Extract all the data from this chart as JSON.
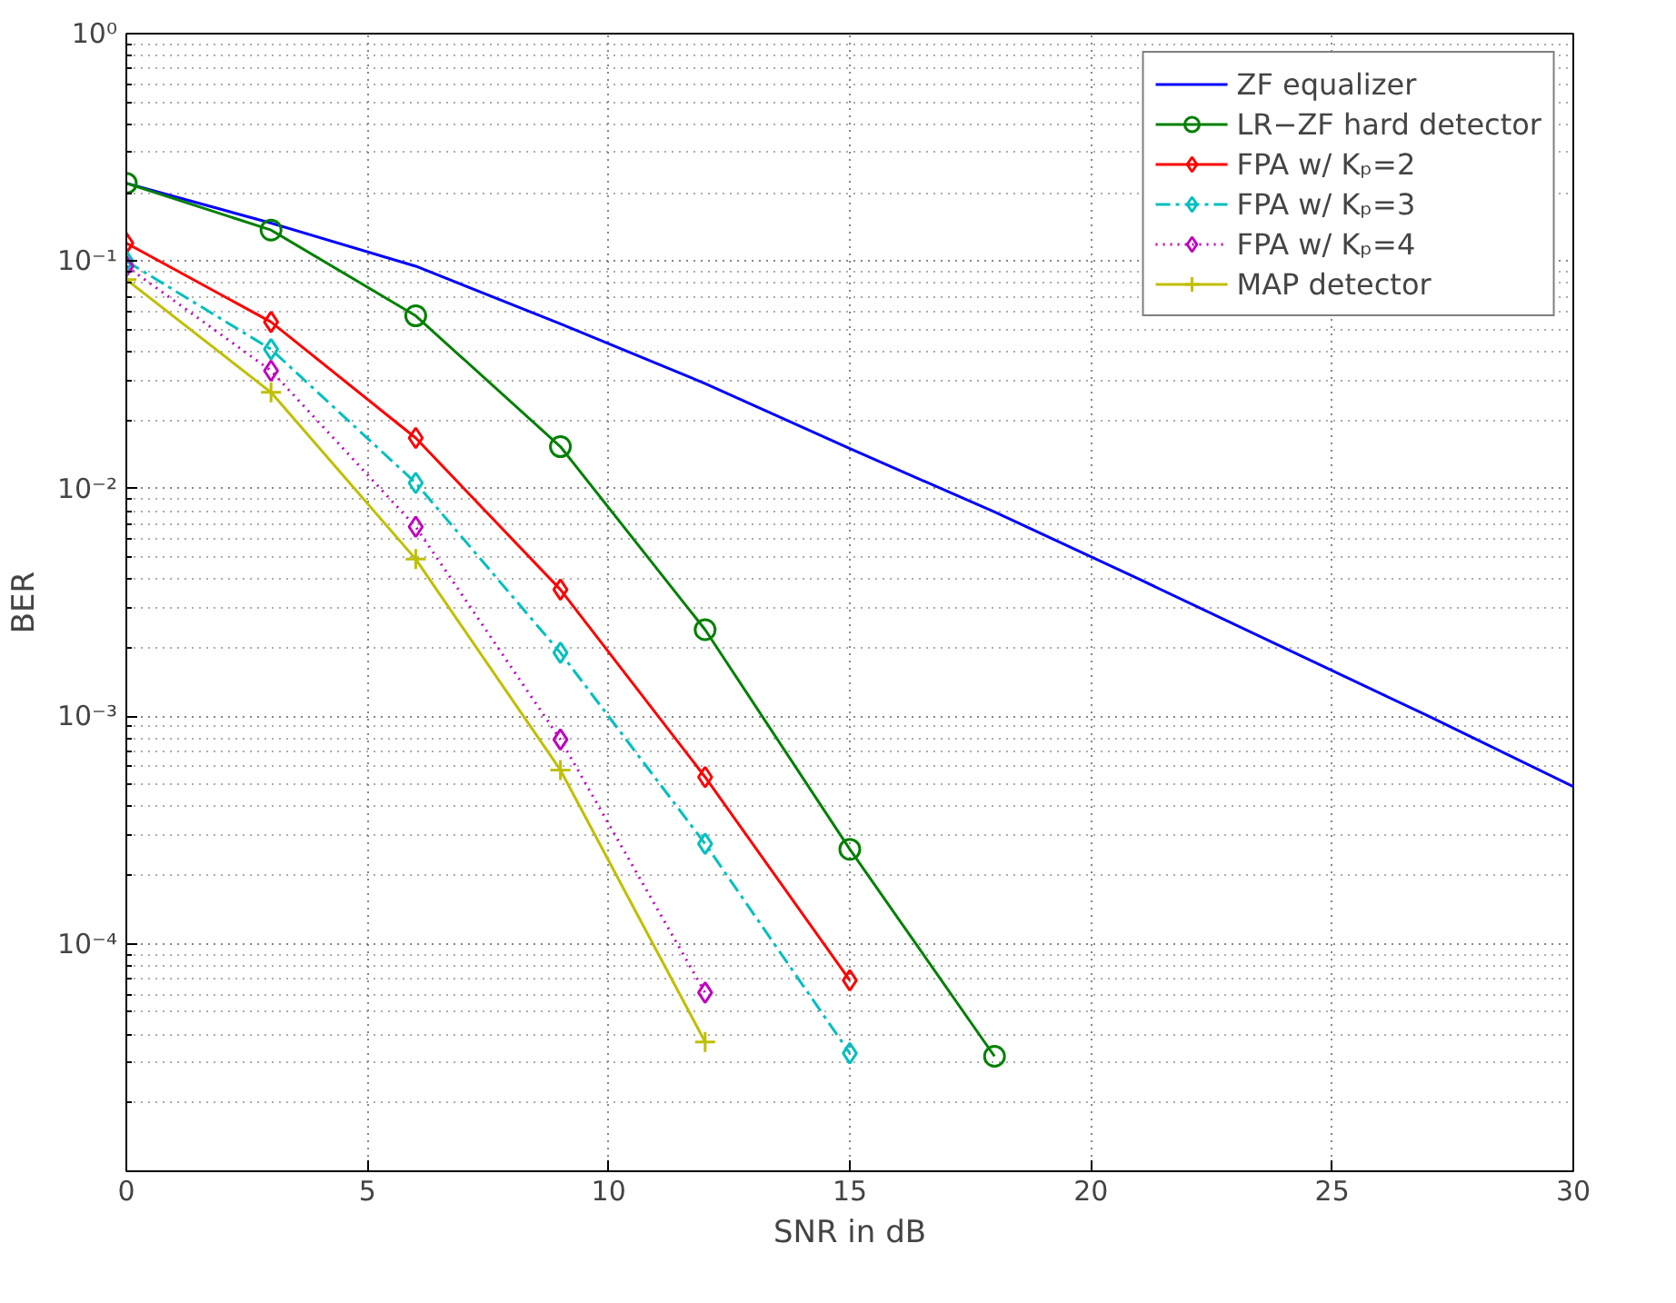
{
  "chart_data": {
    "type": "line",
    "xlabel": "SNR in dB",
    "ylabel": "BER",
    "log": "y",
    "grid": true,
    "legend": "top right",
    "xlim": [
      0,
      30
    ],
    "xticks": [
      0,
      5,
      10,
      15,
      20,
      25,
      30
    ],
    "ylim": [
      1e-05,
      1
    ],
    "yticks": [
      {
        "value": 1,
        "label": "10⁰"
      },
      {
        "value": 0.1,
        "label": "10⁻¹"
      },
      {
        "value": 0.01,
        "label": "10⁻²"
      },
      {
        "value": 0.001,
        "label": "10⁻³"
      },
      {
        "value": 0.0001,
        "label": "10⁻⁴"
      },
      {
        "value": 1e-05,
        "label": null
      }
    ],
    "series": [
      {
        "name": "ZF equalizer",
        "color": "#0000ff",
        "marker": "none",
        "line_style": "solid",
        "x": [
          0,
          3,
          6,
          9,
          12,
          15,
          18,
          21,
          24,
          27,
          30
        ],
        "values": [
          0.22,
          0.147,
          0.095,
          0.053,
          0.029,
          0.015,
          0.0079,
          0.004,
          0.002,
          0.001,
          0.00049
        ]
      },
      {
        "name": "LR−ZF hard detector",
        "color": "#008000",
        "marker": "circle",
        "line_style": "solid",
        "x": [
          0,
          3,
          6,
          9,
          12,
          15,
          18
        ],
        "values": [
          0.22,
          0.137,
          0.0575,
          0.0153,
          0.0024,
          0.00026,
          3.2e-05
        ]
      },
      {
        "name": "FPA w/ Kₚ=2",
        "color": "#ff0000",
        "marker": "diamond",
        "line_style": "solid",
        "x": [
          0,
          3,
          6,
          9,
          12,
          15
        ],
        "values": [
          0.12,
          0.054,
          0.0167,
          0.0036,
          0.00054,
          6.9e-05
        ]
      },
      {
        "name": "FPA w/ Kₚ=3",
        "color": "#00bfbf",
        "marker": "diamond",
        "line_style": "dashdot",
        "x": [
          0,
          3,
          6,
          9,
          12,
          15
        ],
        "values": [
          0.1,
          0.041,
          0.0106,
          0.0019,
          0.000275,
          3.3e-05
        ]
      },
      {
        "name": "FPA w/ Kₚ=4",
        "color": "#bf00bf",
        "marker": "diamond",
        "line_style": "dotted",
        "x": [
          0,
          3,
          6,
          9,
          12
        ],
        "values": [
          0.095,
          0.033,
          0.0068,
          0.00079,
          6.1e-05
        ]
      },
      {
        "name": "MAP detector",
        "color": "#bfbf00",
        "marker": "cross",
        "line_style": "solid",
        "x": [
          0,
          3,
          6,
          9,
          12
        ],
        "values": [
          0.083,
          0.0265,
          0.0049,
          0.00058,
          3.7e-05
        ]
      }
    ]
  }
}
